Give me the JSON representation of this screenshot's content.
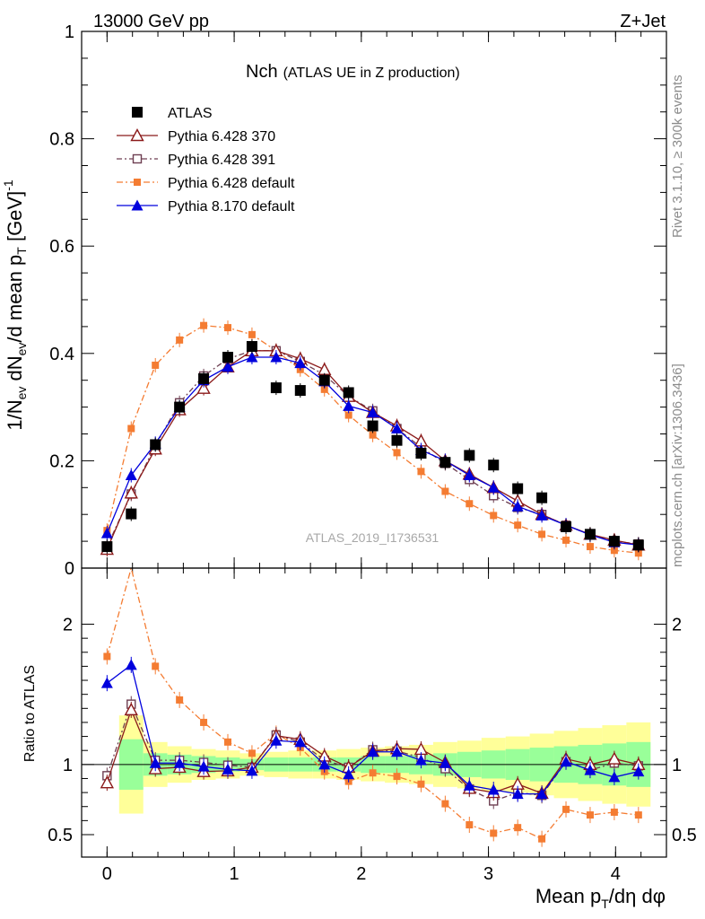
{
  "header": {
    "left": "13000 GeV pp",
    "right": "Z+Jet"
  },
  "side_labels": {
    "rivet": "Rivet 3.1.10, ≥ 300k events",
    "mcplots": "mcplots.cern.ch [arXiv:1306.3436]"
  },
  "chart_data": {
    "type": "scatter",
    "title": "Nch",
    "subtitle": "(ATLAS UE in Z production)",
    "watermark": "ATLAS_2019_I1736531",
    "xlabel": "Mean p_T/dη dφ",
    "ylabel": "1/N_ev dN_ev/d mean p_T [GeV]^-1",
    "ratio_ylabel": "Ratio to ATLAS",
    "xlim": [
      -0.2,
      4.4
    ],
    "ylim": [
      0,
      1.0
    ],
    "ratio_ylim": [
      0.34,
      2.4
    ],
    "x_ticks": [
      "0",
      "1",
      "2",
      "3",
      "4"
    ],
    "y_ticks": [
      "0",
      "0.2",
      "0.4",
      "0.6",
      "0.8",
      "1"
    ],
    "ratio_ticks": [
      "0.5",
      "1",
      "2"
    ],
    "x": [
      0.0,
      0.19,
      0.38,
      0.57,
      0.76,
      0.95,
      1.14,
      1.33,
      1.52,
      1.71,
      1.9,
      2.09,
      2.28,
      2.47,
      2.66,
      2.85,
      3.04,
      3.23,
      3.42,
      3.61,
      3.8,
      3.99,
      4.18
    ],
    "series": [
      {
        "name": "ATLAS",
        "color": "#000000",
        "marker": "square",
        "values": [
          0.04,
          0.101,
          0.23,
          0.3,
          0.353,
          0.393,
          0.413,
          0.336,
          0.331,
          0.35,
          0.327,
          0.265,
          0.238,
          0.214,
          0.197,
          0.21,
          0.192,
          0.148,
          0.131,
          0.077,
          0.063,
          0.05,
          0.043
        ],
        "ratio": []
      },
      {
        "name": "Pythia 6.428 370",
        "color": "#8b1a1a",
        "marker": "open-triangle",
        "dash": "",
        "values": [
          0.035,
          0.14,
          0.222,
          0.295,
          0.335,
          0.375,
          0.405,
          0.405,
          0.39,
          0.37,
          0.32,
          0.29,
          0.265,
          0.237,
          0.2,
          0.175,
          0.15,
          0.125,
          0.1,
          0.08,
          0.063,
          0.052,
          0.043
        ],
        "ratio": [
          0.87,
          1.39,
          0.97,
          0.98,
          0.95,
          0.955,
          0.98,
          1.205,
          1.18,
          1.06,
          0.98,
          1.095,
          1.113,
          1.108,
          1.015,
          0.83,
          0.8,
          0.86,
          0.795,
          1.04,
          1.0,
          1.04,
          1.0
        ]
      },
      {
        "name": "Pythia 6.428 391",
        "color": "#6e3f52",
        "marker": "open-square",
        "dash": "6,3,2,3",
        "values": [
          0.04,
          0.138,
          0.228,
          0.308,
          0.358,
          0.39,
          0.405,
          0.405,
          0.385,
          0.36,
          0.32,
          0.293,
          0.26,
          0.225,
          0.195,
          0.165,
          0.135,
          0.113,
          0.1,
          0.08,
          0.062,
          0.05,
          0.045
        ],
        "ratio": [
          0.92,
          1.43,
          1.03,
          1.03,
          1.015,
          0.995,
          0.98,
          1.21,
          1.16,
          1.03,
          0.98,
          1.105,
          1.095,
          1.05,
          0.97,
          0.825,
          0.74,
          0.8,
          0.78,
          1.02,
          0.96,
          1.01,
          0.99
        ]
      },
      {
        "name": "Pythia 6.428 default",
        "color": "#f47c32",
        "marker": "filled-square",
        "dash": "7,3,2,3",
        "values": [
          0.07,
          0.26,
          0.378,
          0.425,
          0.452,
          0.448,
          0.435,
          0.405,
          0.37,
          0.333,
          0.285,
          0.248,
          0.215,
          0.18,
          0.143,
          0.12,
          0.098,
          0.08,
          0.063,
          0.052,
          0.04,
          0.033,
          0.028
        ],
        "ratio": [
          1.77,
          2.42,
          1.7,
          1.46,
          1.3,
          1.16,
          1.08,
          1.22,
          1.12,
          0.95,
          0.88,
          0.94,
          0.915,
          0.86,
          0.72,
          0.57,
          0.51,
          0.55,
          0.47,
          0.68,
          0.64,
          0.66,
          0.64
        ]
      },
      {
        "name": "Pythia 8.170 default",
        "color": "#0000dd",
        "marker": "filled-triangle",
        "dash": "",
        "values": [
          0.065,
          0.173,
          0.232,
          0.3,
          0.35,
          0.375,
          0.393,
          0.393,
          0.382,
          0.348,
          0.302,
          0.29,
          0.26,
          0.22,
          0.2,
          0.173,
          0.15,
          0.115,
          0.098,
          0.08,
          0.062,
          0.048,
          0.043
        ],
        "ratio": [
          1.58,
          1.71,
          1.01,
          1.01,
          0.985,
          0.965,
          0.955,
          1.17,
          1.16,
          1.0,
          0.93,
          1.09,
          1.09,
          1.03,
          1.01,
          0.85,
          0.82,
          0.79,
          0.79,
          1.02,
          0.96,
          0.91,
          0.95
        ]
      }
    ],
    "bands": {
      "green": [
        0.72,
        1.18,
        1.08,
        1.07,
        1.06,
        1.05,
        1.04,
        1.05,
        1.05,
        1.05,
        1.05,
        1.06,
        1.06,
        1.07,
        1.08,
        1.09,
        1.1,
        1.11,
        1.12,
        1.13,
        1.14,
        1.15,
        1.16
      ],
      "yellow": [
        0.52,
        1.35,
        1.16,
        1.13,
        1.11,
        1.1,
        1.08,
        1.09,
        1.1,
        1.1,
        1.11,
        1.12,
        1.13,
        1.14,
        1.16,
        1.17,
        1.19,
        1.2,
        1.22,
        1.24,
        1.26,
        1.28,
        1.3
      ]
    }
  }
}
